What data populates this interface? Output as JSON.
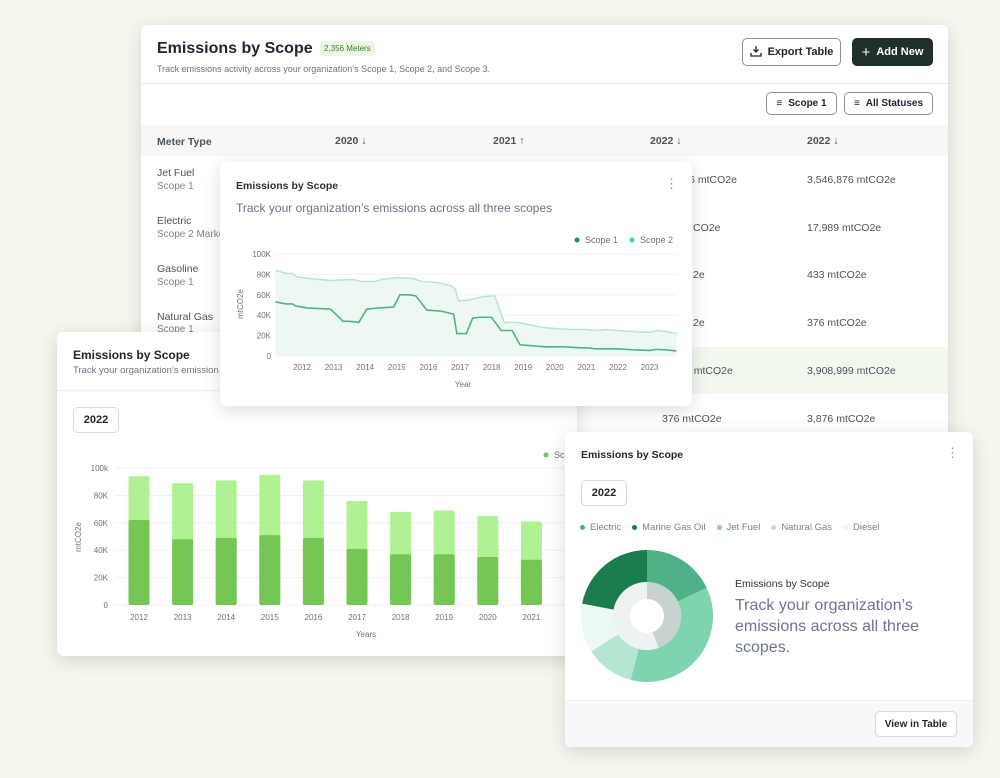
{
  "table_card": {
    "title": "Emissions by Scope",
    "badge": "2,356 Meters",
    "subtitle": "Track emissions activity across your organization’s Scope 1, Scope 2, and Scope 3.",
    "export_label": "Export Table",
    "add_label": "Add New",
    "filter_scope": "Scope 1",
    "filter_status": "All Statuses",
    "columns": [
      "Meter Type",
      "2020",
      "2021",
      "2022",
      "2022"
    ],
    "column_sort": [
      "",
      "↓",
      "↑",
      "↓",
      "↓"
    ],
    "rows": [
      {
        "type": "Jet Fuel",
        "scope": "Scope 1",
        "c4": "6 mtCO2e",
        "c5": "3,546,876 mtCO2e"
      },
      {
        "type": "Electric",
        "scope": "Scope 2 Marke",
        "c4": "CO2e",
        "c5": "17,989 mtCO2e"
      },
      {
        "type": "Gasoline",
        "scope": "Scope 1",
        "c4": "2e",
        "c5": "433 mtCO2e"
      },
      {
        "type": "Natural Gas",
        "scope": "Scope 1",
        "c4": "2e",
        "c5": "376 mtCO2e"
      },
      {
        "type": "",
        "scope": "",
        "c4": "9 mtCO2e",
        "c5": "3,908,999 mtCO2e"
      },
      {
        "type": "",
        "scope": "",
        "c4": "376 mtCO2e",
        "c5": "3,876 mtCO2e"
      }
    ]
  },
  "line_card": {
    "title": "Emissions by Scope",
    "subtitle": "Track your organization’s emissions across all three scopes"
  },
  "bar_card": {
    "title": "Emissions by Scope",
    "subtitle": "Track your organization’s emission",
    "year": "2022"
  },
  "pie_card": {
    "title": "Emissions by Scope",
    "year": "2022",
    "center_title": "Emissions by Scope",
    "center_text": "Track your organization’s emissions across all three scopes.",
    "view_label": "View in Table"
  },
  "chart_data": [
    {
      "type": "area",
      "xlabel": "Year",
      "ylabel": "mtCO2e",
      "ylim": [
        0,
        100000
      ],
      "yticks": [
        "0",
        "20K",
        "40K",
        "60K",
        "80K",
        "100K"
      ],
      "xticks": [
        "2012",
        "2013",
        "2014",
        "2015",
        "2016",
        "2017",
        "2018",
        "2019",
        "2020",
        "2021",
        "2022",
        "2023"
      ],
      "legend": "top-right",
      "series": [
        {
          "name": "Scope 1",
          "color": "#0f9488",
          "x": [
            2011.16,
            2011.5,
            2011.7,
            2011.8,
            2012.2,
            2012.9,
            2013.3,
            2013.5,
            2013.8,
            2014.05,
            2014.4,
            2014.9,
            2015.1,
            2015.4,
            2015.6,
            2015.95,
            2016.4,
            2016.8,
            2016.9,
            2017.2,
            2017.4,
            2017.6,
            2018,
            2018.3,
            2018.65,
            2018.9,
            2019.3,
            2019.7,
            2020.3,
            2020.8,
            2021,
            2021.3,
            2021.6,
            2022,
            2022.5,
            2023,
            2023.2,
            2023.5,
            2023.85
          ],
          "values": [
            53,
            51,
            51,
            49,
            47,
            46,
            34,
            34,
            33,
            46,
            47,
            48,
            60,
            60,
            59,
            45,
            44,
            41,
            22,
            22,
            37,
            38,
            38,
            25,
            25,
            11,
            10,
            9,
            9,
            8,
            8,
            7,
            7,
            7,
            6,
            5.5,
            6.5,
            6,
            5
          ]
        },
        {
          "name": "Scope 2",
          "color": "#2dd4cf",
          "x": [
            2011.16,
            2011.5,
            2011.7,
            2011.8,
            2012.2,
            2012.9,
            2013.6,
            2013.9,
            2014.3,
            2014.5,
            2015,
            2015.5,
            2015.8,
            2016.3,
            2016.7,
            2016.85,
            2016.95,
            2017.3,
            2017.7,
            2018,
            2018.1,
            2018.4,
            2018.8,
            2019.3,
            2019.6,
            2020,
            2020.5,
            2021,
            2021.3,
            2021.6,
            2022,
            2022.5,
            2023,
            2023.2,
            2023.5,
            2023.85
          ],
          "values": [
            84,
            81,
            81,
            78,
            76,
            74,
            75,
            73,
            73,
            75,
            77,
            76,
            73,
            72,
            69,
            66,
            54,
            55,
            58,
            59,
            59,
            33,
            33,
            30,
            28,
            27,
            26,
            26,
            25,
            26,
            25,
            24,
            23,
            25,
            24,
            22
          ]
        }
      ]
    },
    {
      "type": "bar",
      "xlabel": "Years",
      "ylabel": "mtCO2e",
      "ylim": [
        0,
        100000
      ],
      "yticks": [
        "0",
        "20K",
        "40K",
        "60K",
        "80K",
        "100k"
      ],
      "categories": [
        "2012",
        "2013",
        "2014",
        "2015",
        "2016",
        "2017",
        "2018",
        "2019",
        "2020",
        "2021"
      ],
      "legend": "top-right",
      "series": [
        {
          "name": "Scope 1",
          "color": "#74c655",
          "values": [
            62,
            48,
            49,
            51,
            49,
            41,
            37,
            37,
            35,
            33
          ]
        },
        {
          "name": "Total",
          "color": "#b0f293",
          "values": [
            94,
            89,
            91,
            95,
            91,
            76,
            68,
            69,
            65,
            61
          ]
        }
      ],
      "legend_visible_text": "Sc"
    },
    {
      "type": "pie",
      "legend": "top",
      "slices": [
        {
          "name": "Electric",
          "value": 18,
          "color": "#4fb286"
        },
        {
          "name": "Jet Fuel",
          "value": 36,
          "color": "#7fd4b0"
        },
        {
          "name": "Natural Gas",
          "value": 12,
          "color": "#b5e6d0"
        },
        {
          "name": "Diesel",
          "value": 12,
          "color": "#ecf8f3"
        },
        {
          "name": "Marine Gas Oil",
          "value": 22,
          "color": "#1b7c4e"
        }
      ],
      "legend_order": [
        "Electric",
        "Marine Gas Oil",
        "Jet Fuel",
        "Natural Gas",
        "Diesel"
      ]
    }
  ]
}
